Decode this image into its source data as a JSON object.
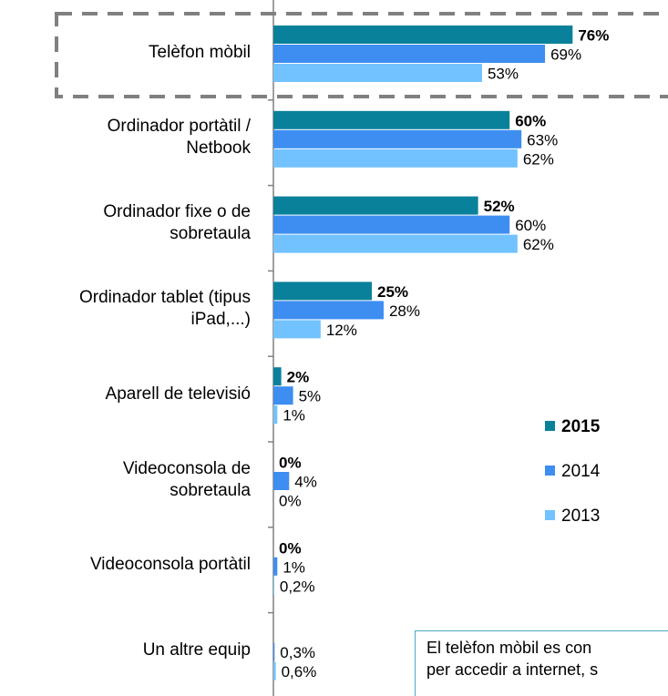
{
  "chart_data": {
    "type": "hbar",
    "categories": [
      "Telèfon mòbil",
      "Ordinador portàtil /\nNetbook",
      "Ordinador fixe o de\nsobretaula",
      "Ordinador tablet (tipus\niPad,...)",
      "Aparell de televisió",
      "Videoconsola de\nsobretaula",
      "Videoconsola portàtil",
      "Un altre equip"
    ],
    "series": [
      {
        "name": "2015",
        "color": "#0a819b",
        "values": [
          76,
          60,
          52,
          25,
          2,
          0,
          0,
          null
        ],
        "value_labels": [
          "76%",
          "60%",
          "52%",
          "25%",
          "2%",
          "0%",
          "0%",
          null
        ]
      },
      {
        "name": "2014",
        "color": "#3d8ef0",
        "values": [
          69,
          63,
          60,
          28,
          5,
          4,
          1,
          0.3
        ],
        "value_labels": [
          "69%",
          "63%",
          "60%",
          "28%",
          "5%",
          "4%",
          "1%",
          "0,3%"
        ]
      },
      {
        "name": "2013",
        "color": "#72c2ff",
        "values": [
          53,
          62,
          62,
          12,
          1,
          0,
          0.2,
          0.6
        ],
        "value_labels": [
          "53%",
          "62%",
          "62%",
          "12%",
          "1%",
          "0%",
          "0,2%",
          "0,6%"
        ]
      }
    ],
    "xlim": [
      0,
      100
    ],
    "annotation": [
      "El telèfon mòbil es con",
      "per accedir a internet, s"
    ]
  }
}
